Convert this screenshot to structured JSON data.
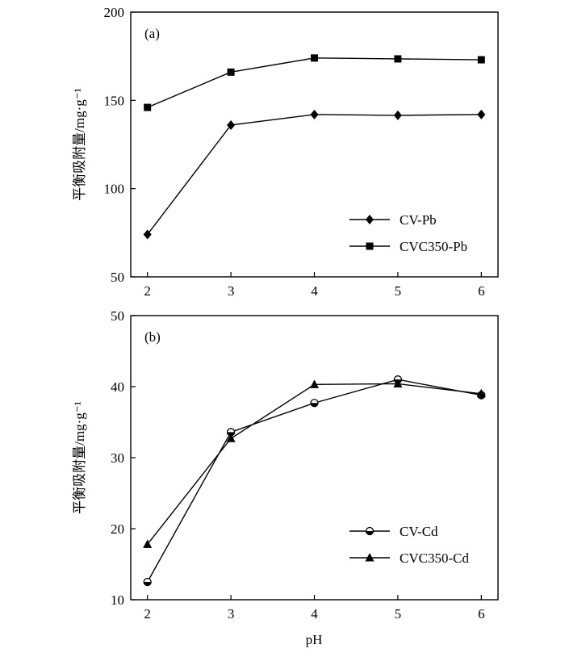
{
  "figure": {
    "x_label": "pH",
    "colors": {
      "axis": "#000000",
      "series": "#000000",
      "background": "#ffffff"
    }
  },
  "chart_data": [
    {
      "type": "line",
      "panel_label": "(a)",
      "ylabel": "平衡吸附量/mg·g⁻¹",
      "xlabel": "",
      "x": [
        2,
        3,
        4,
        5,
        6
      ],
      "xticks": [
        "2",
        "3",
        "4",
        "5",
        "6"
      ],
      "ylim": [
        50,
        200
      ],
      "yticks": [
        "50",
        "100",
        "150",
        "200"
      ],
      "series": [
        {
          "name": "CV-Pb",
          "marker": "diamond",
          "values": [
            74,
            136,
            142,
            141.5,
            142
          ]
        },
        {
          "name": "CVC350-Pb",
          "marker": "square",
          "values": [
            146,
            166,
            174,
            173.5,
            173
          ]
        }
      ],
      "legend": "bottom-right",
      "grid": false
    },
    {
      "type": "line",
      "panel_label": "(b)",
      "ylabel": "平衡吸附量/mg·g⁻¹",
      "xlabel": "pH",
      "x": [
        2,
        3,
        4,
        5,
        6
      ],
      "xticks": [
        "2",
        "3",
        "4",
        "5",
        "6"
      ],
      "ylim": [
        10,
        50
      ],
      "yticks": [
        "10",
        "20",
        "30",
        "40",
        "50"
      ],
      "series": [
        {
          "name": "CV-Cd",
          "marker": "half-circle",
          "values": [
            12.5,
            33.6,
            37.7,
            41,
            38.8
          ]
        },
        {
          "name": "CVC350-Cd",
          "marker": "triangle",
          "values": [
            17.8,
            32.7,
            40.3,
            40.4,
            39
          ]
        }
      ],
      "legend": "bottom-right",
      "grid": false
    }
  ]
}
